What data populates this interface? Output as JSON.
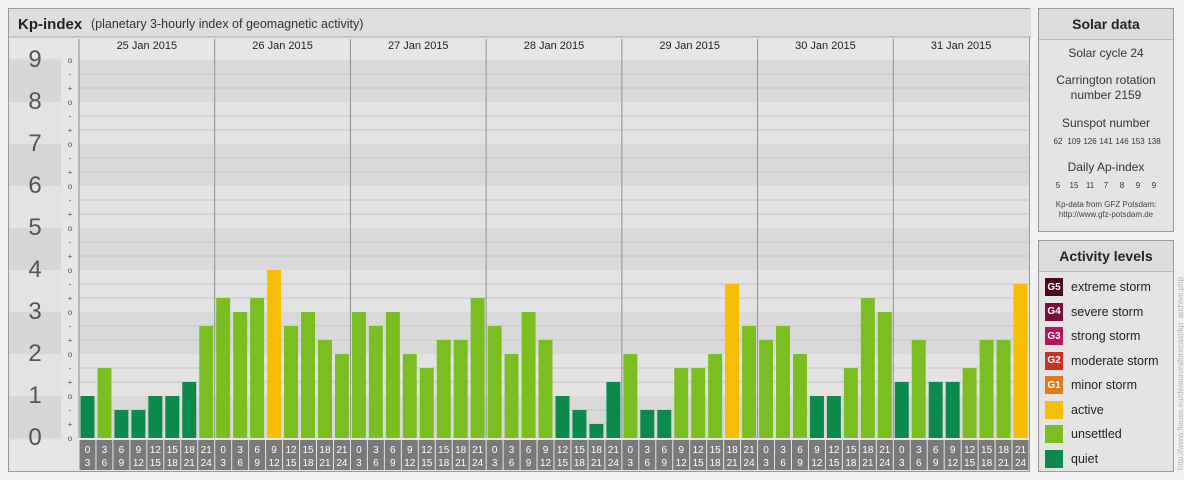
{
  "header": {
    "title": "Kp-index",
    "subtitle": "(planetary 3-hourly index of geomagnetic activity)"
  },
  "chart_data": {
    "type": "bar",
    "days": [
      "25 Jan 2015",
      "26 Jan 2015",
      "27 Jan 2015",
      "28 Jan 2015",
      "29 Jan 2015",
      "30 Jan 2015",
      "31 Jan 2015"
    ],
    "hour_labels_top": [
      "0",
      "3",
      "6",
      "9",
      "12",
      "15",
      "18",
      "21"
    ],
    "hour_labels_bottom": [
      "3",
      "6",
      "9",
      "12",
      "15",
      "18",
      "21",
      "24"
    ],
    "ylim": [
      0,
      9
    ],
    "y_tick_labels": [
      "0",
      "1",
      "2",
      "3",
      "4",
      "5",
      "6",
      "7",
      "8",
      "9"
    ],
    "sub_tick_labels": [
      "o",
      "+",
      "-"
    ],
    "values": [
      1.0,
      1.667,
      0.667,
      0.667,
      1.0,
      1.0,
      1.333,
      2.667,
      3.333,
      3.0,
      3.333,
      4.0,
      2.667,
      3.0,
      2.333,
      2.0,
      3.0,
      2.667,
      3.0,
      2.0,
      1.667,
      2.333,
      2.333,
      3.333,
      2.667,
      2.0,
      3.0,
      2.333,
      1.0,
      0.667,
      0.333,
      1.333,
      2.0,
      0.667,
      0.667,
      1.667,
      1.667,
      2.0,
      3.667,
      2.667,
      2.333,
      2.667,
      2.0,
      1.0,
      1.0,
      1.667,
      3.333,
      3.0,
      1.333,
      2.333,
      1.333,
      1.333,
      1.667,
      2.333,
      2.333,
      3.667
    ],
    "colors": {
      "quiet": "#0c8a4c",
      "unsettled": "#7bbe22",
      "active": "#f5be00"
    }
  },
  "solar": {
    "title": "Solar data",
    "cycle": "Solar cycle 24",
    "carrington_line1": "Carrington rotation",
    "carrington_line2": "number 2159",
    "sunspot_label": "Sunspot number",
    "sunspot_values": [
      "62",
      "109",
      "126",
      "141",
      "146",
      "153",
      "138"
    ],
    "ap_label": "Daily Ap-index",
    "ap_values": [
      "5",
      "15",
      "11",
      "7",
      "8",
      "9",
      "9"
    ],
    "source_line1": "Kp-data from GFZ Potsdam:",
    "source_line2": "http://www.gfz-potsdam.de"
  },
  "levels": {
    "title": "Activity levels",
    "items": [
      {
        "code": "G5",
        "label": "extreme storm",
        "color": "#4a0a18"
      },
      {
        "code": "G4",
        "label": "severe storm",
        "color": "#7a0f3a"
      },
      {
        "code": "G3",
        "label": "strong storm",
        "color": "#b5135b"
      },
      {
        "code": "G2",
        "label": "moderate storm",
        "color": "#cf2f24"
      },
      {
        "code": "G1",
        "label": "minor storm",
        "color": "#e07a1a"
      },
      {
        "code": "",
        "label": "active",
        "color": "#f5be00"
      },
      {
        "code": "",
        "label": "unsettled",
        "color": "#7bbe22"
      },
      {
        "code": "",
        "label": "quiet",
        "color": "#0c8a4c"
      }
    ]
  },
  "watermark": "http://www.fleuse.eu/de/auroraforecast/kp_archive.php"
}
